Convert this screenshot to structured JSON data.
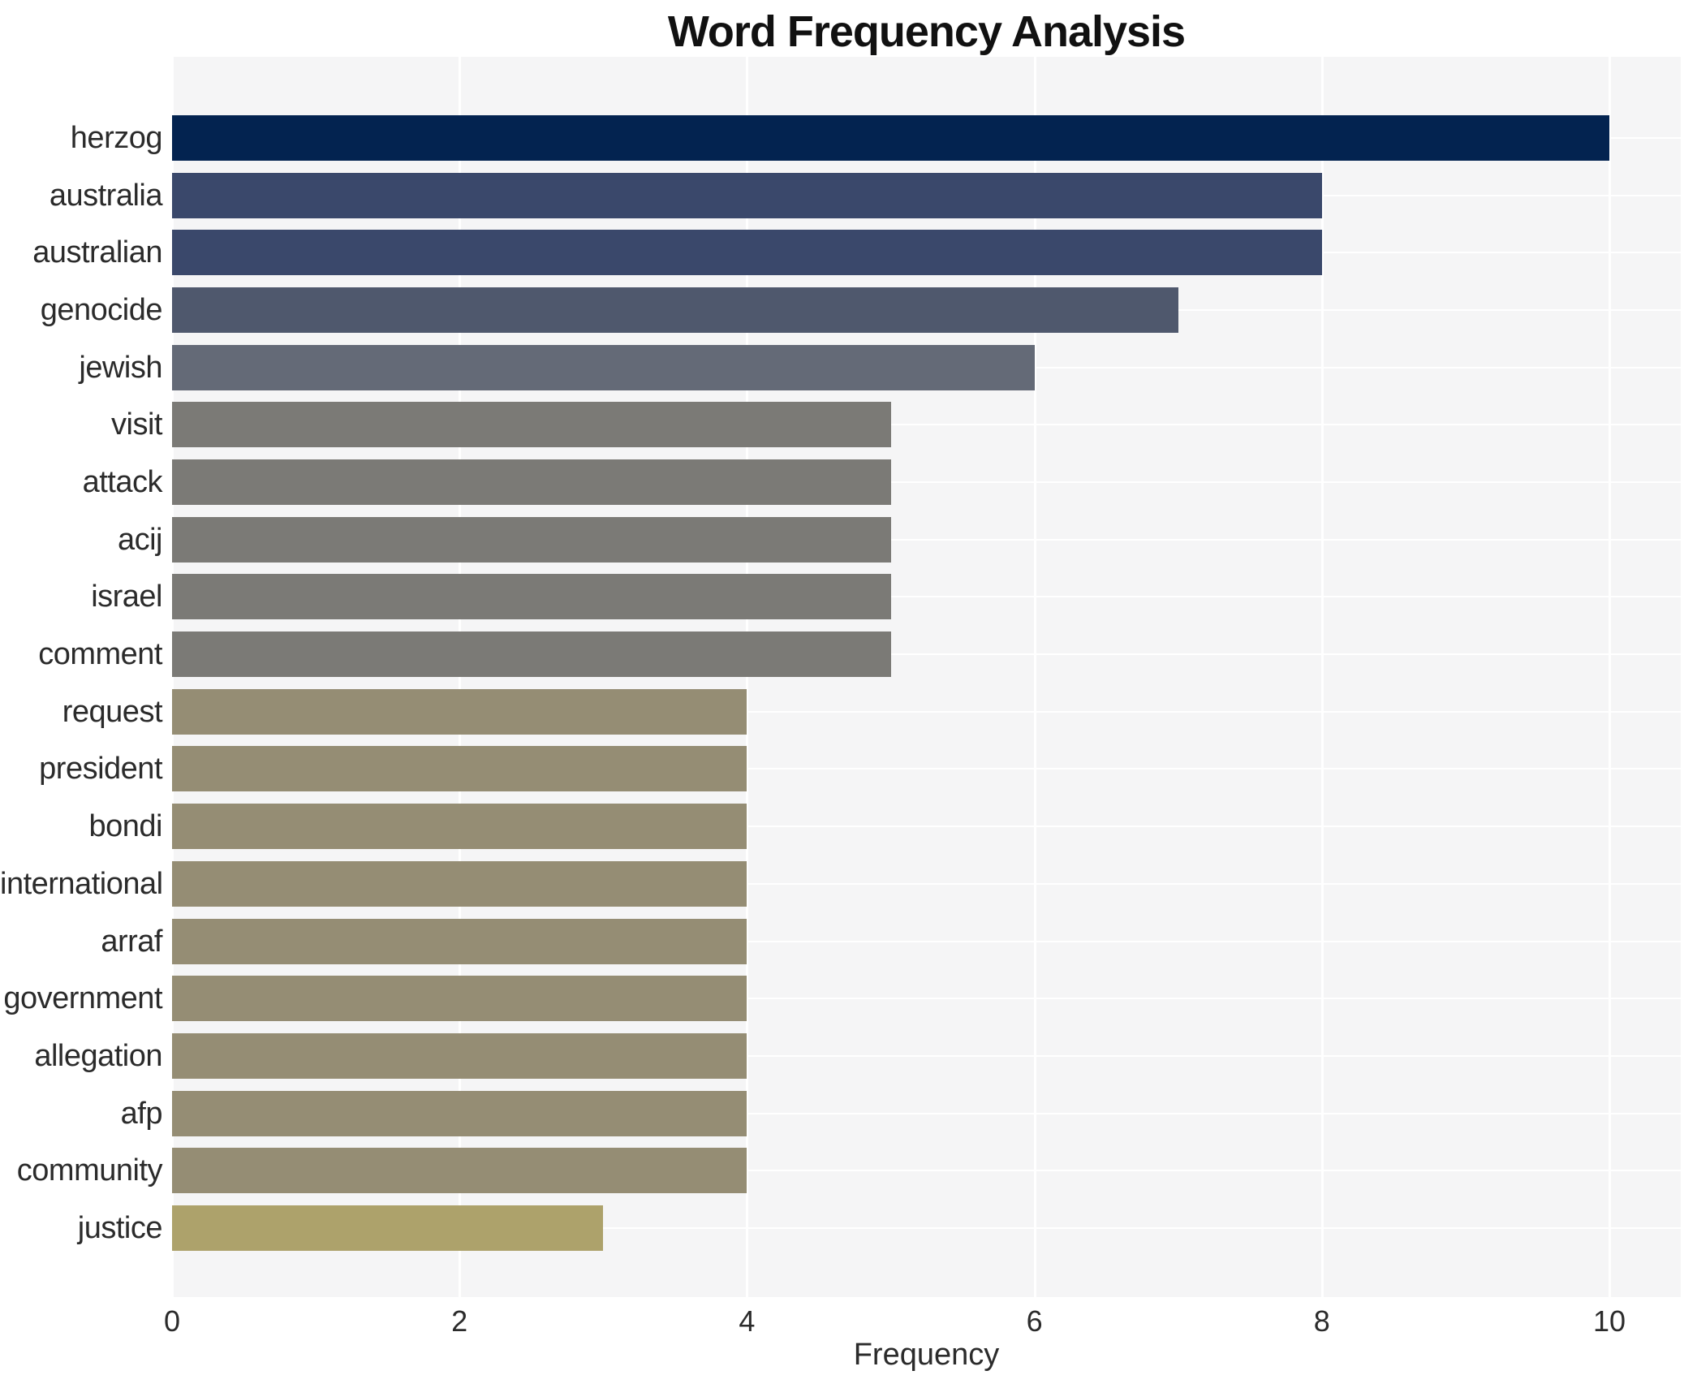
{
  "title": "Word Frequency Analysis",
  "xlabel": "Frequency",
  "chart_data": {
    "type": "bar",
    "orientation": "horizontal",
    "title": "Word Frequency Analysis",
    "xlabel": "Frequency",
    "ylabel": "",
    "categories": [
      "herzog",
      "australia",
      "australian",
      "genocide",
      "jewish",
      "visit",
      "attack",
      "acij",
      "israel",
      "comment",
      "request",
      "president",
      "bondi",
      "international",
      "arraf",
      "government",
      "allegation",
      "afp",
      "community",
      "justice"
    ],
    "values": [
      10,
      8,
      8,
      7,
      6,
      5,
      5,
      5,
      5,
      5,
      4,
      4,
      4,
      4,
      4,
      4,
      4,
      4,
      4,
      3
    ],
    "bar_colors": [
      "#032350",
      "#3a486b",
      "#3a486b",
      "#4f586d",
      "#646a77",
      "#7b7a76",
      "#7b7a76",
      "#7b7a76",
      "#7b7a76",
      "#7b7a76",
      "#958d74",
      "#958d74",
      "#958d74",
      "#958d74",
      "#958d74",
      "#958d74",
      "#958d74",
      "#958d74",
      "#958d74",
      "#ada26b"
    ],
    "xlim": [
      0,
      10.5
    ],
    "xticks": [
      0,
      2,
      4,
      6,
      8,
      10
    ],
    "xtick_labels": [
      "0",
      "2",
      "4",
      "6",
      "8",
      "10"
    ],
    "grid": true,
    "plot_bg_color": "#f5f5f6",
    "grid_color": "#ffffff",
    "legend": null
  }
}
